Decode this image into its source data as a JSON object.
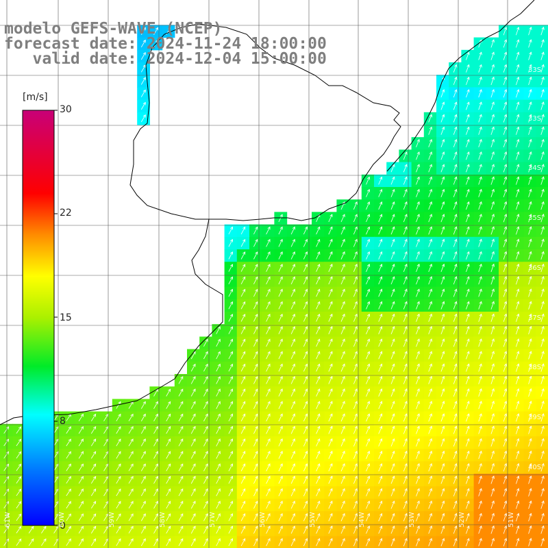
{
  "title": {
    "line1": "modelo GEFS-WAVE (NCEP)",
    "line2": "forecast date: 2024-11-24 18:00:00",
    "line3": "   valid date: 2024-12-04 15:00:00"
  },
  "colorbar": {
    "unit": "[m/s]",
    "ticks": [
      "30",
      "22",
      "15",
      "8",
      "0"
    ]
  },
  "axes": {
    "lat_labels": [
      "33S",
      "34S",
      "35S",
      "36S",
      "37S",
      "38S",
      "39S",
      "40S"
    ],
    "lon_labels": [
      "61W",
      "60W",
      "59W",
      "58W",
      "57W",
      "56W",
      "55W",
      "54W",
      "53W",
      "52W",
      "51W"
    ]
  },
  "colors": {
    "land": "#ffffff",
    "coast": "#000000",
    "grid": "#555555",
    "arrows": "#ffffff",
    "title_text": "#7f7f7f"
  },
  "chart_data": {
    "type": "heatmap",
    "variable": "wind speed with direction arrows",
    "unit": "m/s",
    "colorbar_range": [
      0,
      30
    ],
    "colormap": [
      "blue",
      "cyan",
      "green",
      "yellow",
      "orange",
      "red",
      "magenta"
    ],
    "wind_direction": "from SW toward NE",
    "x_range": [
      "61W",
      "50W"
    ],
    "y_range": [
      "32S",
      "41S"
    ],
    "speed_regions": [
      {
        "area": "Rio de la Plata mouth and inner coast",
        "speed": 9
      },
      {
        "area": "Uruguay/Brazil shelf",
        "speed": 12
      },
      {
        "area": "open ocean 36S-40S",
        "speed": 16
      },
      {
        "area": "southeast corner",
        "speed": 19
      }
    ]
  }
}
